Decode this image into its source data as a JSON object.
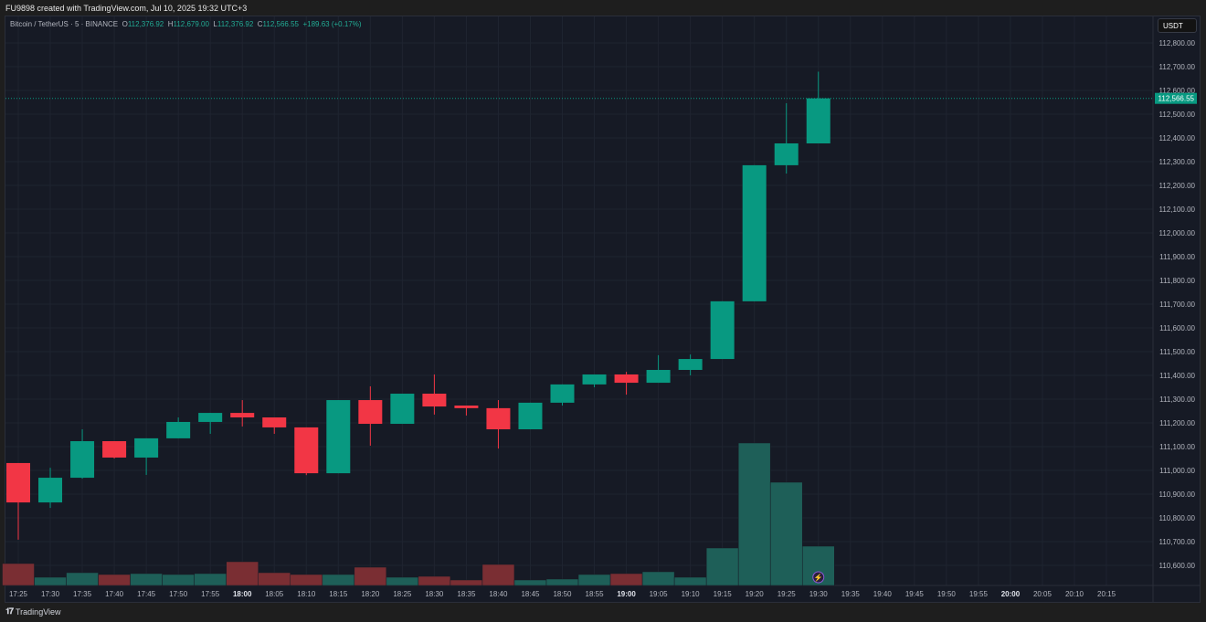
{
  "header": {
    "text": "FU9898 created with TradingView.com, Jul 10, 2025 19:32 UTC+3"
  },
  "legend": {
    "symbol": "Bitcoin / TetherUS · 5 · BINANCE",
    "o_label": "O",
    "o": "112,376.92",
    "h_label": "H",
    "h": "112,679.00",
    "l_label": "L",
    "l": "112,376.92",
    "c_label": "C",
    "c": "112,566.55",
    "change": "+189.63 (+0.17%)"
  },
  "currency_button": "USDT",
  "last_price_label": "112,566.55",
  "footer": {
    "brand": "TradingView"
  },
  "colors": {
    "up": "#089981",
    "down": "#f23645",
    "vol_up": "#1e5f58",
    "vol_down": "#7a2e33",
    "bg": "#161a25"
  },
  "chart_data": {
    "type": "candlestick",
    "interval": "5",
    "ylim": [
      110550,
      112850
    ],
    "price_ticks": [
      "112,800.00",
      "112,700.00",
      "112,600.00",
      "112,500.00",
      "112,400.00",
      "112,300.00",
      "112,200.00",
      "112,100.00",
      "112,000.00",
      "111,900.00",
      "111,800.00",
      "111,700.00",
      "111,600.00",
      "111,500.00",
      "111,400.00",
      "111,300.00",
      "111,200.00",
      "111,100.00",
      "111,000.00",
      "110,900.00",
      "110,800.00",
      "110,700.00",
      "110,600.00"
    ],
    "time_ticks": [
      "17:25",
      "17:30",
      "17:35",
      "17:40",
      "17:45",
      "17:50",
      "17:55",
      "18:00",
      "18:05",
      "18:10",
      "18:15",
      "18:20",
      "18:25",
      "18:30",
      "18:35",
      "18:40",
      "18:45",
      "18:50",
      "18:55",
      "19:00",
      "19:05",
      "19:10",
      "19:15",
      "19:20",
      "19:25",
      "19:30",
      "19:35",
      "19:40",
      "19:45",
      "19:50",
      "19:55",
      "20:00",
      "20:05",
      "20:10",
      "20:15"
    ],
    "bold_ticks": [
      "18:00",
      "19:00",
      "20:00"
    ],
    "candles": [
      {
        "t": "17:25",
        "o": 111031,
        "h": 111031,
        "l": 110708,
        "c": 110865,
        "v": 24
      },
      {
        "t": "17:30",
        "o": 110865,
        "h": 111011,
        "l": 110842,
        "c": 110969,
        "v": 9
      },
      {
        "t": "17:35",
        "o": 110969,
        "h": 111173,
        "l": 110965,
        "c": 111123,
        "v": 14
      },
      {
        "t": "17:40",
        "o": 111123,
        "h": 111123,
        "l": 111050,
        "c": 111054,
        "v": 12
      },
      {
        "t": "17:45",
        "o": 111054,
        "h": 111135,
        "l": 110981,
        "c": 111135,
        "v": 13
      },
      {
        "t": "17:50",
        "o": 111135,
        "h": 111223,
        "l": 111135,
        "c": 111204,
        "v": 12
      },
      {
        "t": "17:55",
        "o": 111204,
        "h": 111242,
        "l": 111154,
        "c": 111242,
        "v": 13
      },
      {
        "t": "18:00",
        "o": 111242,
        "h": 111296,
        "l": 111185,
        "c": 111223,
        "v": 26
      },
      {
        "t": "18:05",
        "o": 111223,
        "h": 111223,
        "l": 111154,
        "c": 111181,
        "v": 14
      },
      {
        "t": "18:10",
        "o": 111181,
        "h": 111181,
        "l": 110980,
        "c": 110988,
        "v": 12
      },
      {
        "t": "18:15",
        "o": 110988,
        "h": 111296,
        "l": 110988,
        "c": 111296,
        "v": 12
      },
      {
        "t": "18:20",
        "o": 111296,
        "h": 111354,
        "l": 111104,
        "c": 111196,
        "v": 20
      },
      {
        "t": "18:25",
        "o": 111196,
        "h": 111323,
        "l": 111196,
        "c": 111323,
        "v": 9
      },
      {
        "t": "18:30",
        "o": 111323,
        "h": 111404,
        "l": 111235,
        "c": 111269,
        "v": 10
      },
      {
        "t": "18:35",
        "o": 111273,
        "h": 111273,
        "l": 111231,
        "c": 111262,
        "v": 6
      },
      {
        "t": "18:40",
        "o": 111262,
        "h": 111296,
        "l": 111092,
        "c": 111173,
        "v": 23
      },
      {
        "t": "18:45",
        "o": 111173,
        "h": 111285,
        "l": 111173,
        "c": 111285,
        "v": 6
      },
      {
        "t": "18:50",
        "o": 111285,
        "h": 111362,
        "l": 111273,
        "c": 111362,
        "v": 7
      },
      {
        "t": "18:55",
        "o": 111362,
        "h": 111404,
        "l": 111350,
        "c": 111404,
        "v": 12
      },
      {
        "t": "19:00",
        "o": 111404,
        "h": 111415,
        "l": 111319,
        "c": 111369,
        "v": 13
      },
      {
        "t": "19:05",
        "o": 111369,
        "h": 111485,
        "l": 111369,
        "c": 111423,
        "v": 15
      },
      {
        "t": "19:10",
        "o": 111423,
        "h": 111488,
        "l": 111400,
        "c": 111469,
        "v": 9
      },
      {
        "t": "19:15",
        "o": 111469,
        "h": 111712,
        "l": 111469,
        "c": 111712,
        "v": 41
      },
      {
        "t": "19:20",
        "o": 111712,
        "h": 112285,
        "l": 111712,
        "c": 112285,
        "v": 156
      },
      {
        "t": "19:25",
        "o": 112285,
        "h": 112546,
        "l": 112250,
        "c": 112377,
        "v": 113
      },
      {
        "t": "19:30",
        "o": 112376.92,
        "h": 112679,
        "l": 112376.92,
        "c": 112566.55,
        "v": 43
      }
    ]
  }
}
